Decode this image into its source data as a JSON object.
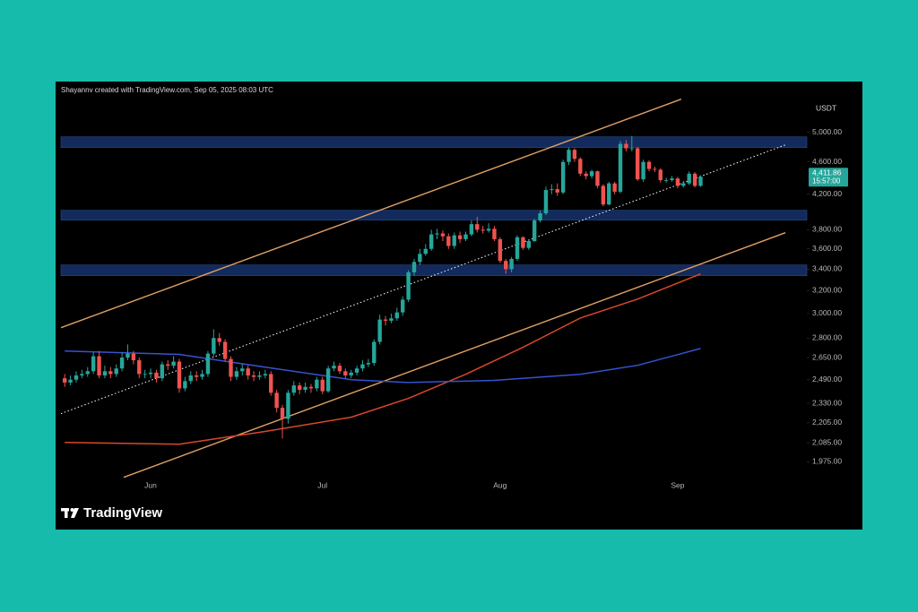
{
  "header": "Shayannv created with TradingView.com, Sep 05, 2025 08:03 UTC",
  "logo": "TradingView",
  "chart_data": {
    "type": "candlestick",
    "y_unit": "USDT",
    "log_scale": true,
    "grid": false,
    "up_color": "#26a69a",
    "down_color": "#ef5350",
    "categories": [
      null,
      null,
      null,
      null,
      null,
      null,
      null,
      null,
      null,
      null,
      null,
      null,
      null,
      null,
      null,
      "Jun",
      null,
      null,
      null,
      null,
      null,
      null,
      null,
      null,
      null,
      null,
      null,
      null,
      null,
      null,
      null,
      null,
      null,
      null,
      null,
      null,
      null,
      null,
      null,
      null,
      null,
      null,
      null,
      null,
      null,
      "Jul",
      null,
      null,
      null,
      null,
      null,
      null,
      null,
      null,
      null,
      null,
      null,
      null,
      null,
      null,
      null,
      null,
      null,
      null,
      null,
      null,
      null,
      null,
      null,
      null,
      null,
      null,
      null,
      null,
      null,
      null,
      "Aug",
      null,
      null,
      null,
      null,
      null,
      null,
      null,
      null,
      null,
      null,
      null,
      null,
      null,
      null,
      null,
      null,
      null,
      null,
      null,
      null,
      null,
      null,
      null,
      null,
      null,
      null,
      null,
      null,
      null,
      null,
      "Sep",
      null,
      null,
      null,
      null
    ],
    "open": [
      2500,
      2470,
      2490,
      2520,
      2530,
      2550,
      2660,
      2520,
      2550,
      2530,
      2570,
      2650,
      2680,
      2630,
      2530,
      2530,
      2540,
      2500,
      2600,
      2590,
      2620,
      2430,
      2480,
      2520,
      2510,
      2530,
      2680,
      2800,
      2770,
      2640,
      2510,
      2550,
      2570,
      2520,
      2510,
      2520,
      2530,
      2400,
      2300,
      2230,
      2400,
      2450,
      2420,
      2440,
      2430,
      2490,
      2410,
      2570,
      2590,
      2550,
      2520,
      2540,
      2570,
      2600,
      2610,
      2770,
      2950,
      2940,
      2960,
      3010,
      3120,
      3370,
      3470,
      3550,
      3600,
      3750,
      3760,
      3730,
      3630,
      3740,
      3700,
      3750,
      3860,
      3800,
      3790,
      3810,
      3700,
      3480,
      3400,
      3500,
      3720,
      3610,
      3680,
      3900,
      3980,
      4250,
      4260,
      4220,
      4600,
      4760,
      4640,
      4450,
      4420,
      4480,
      4300,
      4080,
      4330,
      4230,
      4840,
      4780,
      4780,
      4380,
      4600,
      4510,
      4500,
      4370,
      4370,
      4390,
      4300,
      4330,
      4450,
      4300
    ],
    "high": [
      2530,
      2520,
      2550,
      2560,
      2580,
      2690,
      2700,
      2590,
      2580,
      2600,
      2690,
      2750,
      2700,
      2650,
      2560,
      2570,
      2560,
      2620,
      2630,
      2660,
      2640,
      2510,
      2550,
      2550,
      2560,
      2700,
      2870,
      2840,
      2790,
      2660,
      2580,
      2600,
      2590,
      2550,
      2550,
      2560,
      2550,
      2420,
      2320,
      2420,
      2480,
      2470,
      2470,
      2460,
      2510,
      2510,
      2590,
      2620,
      2610,
      2570,
      2560,
      2590,
      2630,
      2640,
      2790,
      2990,
      2980,
      3000,
      3050,
      3150,
      3390,
      3500,
      3600,
      3650,
      3800,
      3810,
      3790,
      3760,
      3770,
      3780,
      3780,
      3900,
      3940,
      3840,
      3870,
      3840,
      3720,
      3500,
      3520,
      3740,
      3730,
      3700,
      3920,
      4010,
      4290,
      4320,
      4330,
      4630,
      4790,
      4780,
      4660,
      4480,
      4500,
      4490,
      4320,
      4350,
      4350,
      4880,
      4890,
      4950,
      4800,
      4630,
      4620,
      4540,
      4520,
      4400,
      4420,
      4410,
      4360,
      4480,
      4470,
      4430
    ],
    "low": [
      2440,
      2450,
      2470,
      2500,
      2510,
      2530,
      2500,
      2500,
      2500,
      2510,
      2550,
      2630,
      2600,
      2500,
      2500,
      2500,
      2470,
      2480,
      2560,
      2570,
      2400,
      2410,
      2460,
      2480,
      2490,
      2510,
      2660,
      2740,
      2620,
      2480,
      2490,
      2520,
      2490,
      2480,
      2490,
      2500,
      2380,
      2270,
      2110,
      2200,
      2380,
      2390,
      2400,
      2400,
      2410,
      2390,
      2400,
      2550,
      2530,
      2500,
      2500,
      2520,
      2550,
      2580,
      2590,
      2750,
      2900,
      2920,
      2940,
      2980,
      3100,
      3340,
      3440,
      3530,
      3580,
      3700,
      3680,
      3600,
      3600,
      3660,
      3680,
      3730,
      3770,
      3760,
      3770,
      3680,
      3460,
      3355,
      3370,
      3480,
      3590,
      3590,
      3670,
      3880,
      3960,
      4200,
      4180,
      4200,
      4560,
      4600,
      4420,
      4380,
      4390,
      4270,
      4060,
      4070,
      4200,
      4210,
      4740,
      4740,
      4360,
      4350,
      4480,
      4470,
      4340,
      4340,
      4350,
      4270,
      4280,
      4310,
      4280,
      4290
    ],
    "close": [
      2470,
      2490,
      2520,
      2530,
      2550,
      2660,
      2520,
      2550,
      2530,
      2570,
      2650,
      2680,
      2630,
      2530,
      2530,
      2540,
      2500,
      2600,
      2590,
      2620,
      2430,
      2480,
      2520,
      2510,
      2530,
      2680,
      2800,
      2770,
      2640,
      2510,
      2550,
      2570,
      2520,
      2510,
      2520,
      2530,
      2400,
      2300,
      2230,
      2400,
      2450,
      2420,
      2440,
      2430,
      2490,
      2410,
      2570,
      2590,
      2550,
      2520,
      2540,
      2570,
      2600,
      2610,
      2770,
      2950,
      2940,
      2960,
      3010,
      3120,
      3370,
      3470,
      3550,
      3600,
      3750,
      3760,
      3730,
      3630,
      3740,
      3700,
      3750,
      3860,
      3800,
      3790,
      3810,
      3700,
      3480,
      3400,
      3500,
      3720,
      3610,
      3680,
      3900,
      3980,
      4250,
      4260,
      4220,
      4600,
      4760,
      4640,
      4450,
      4420,
      4480,
      4300,
      4080,
      4330,
      4230,
      4840,
      4780,
      4780,
      4380,
      4600,
      4510,
      4500,
      4370,
      4370,
      4390,
      4300,
      4330,
      4450,
      4300,
      4411.86
    ],
    "ylim": [
      1880,
      5640
    ],
    "yticks": [
      {
        "value": 5000,
        "label": "5,000.00"
      },
      {
        "value": 4600,
        "label": "4,600.00"
      },
      {
        "value": 4200,
        "label": "4,200.00"
      },
      {
        "value": 3800,
        "label": "3,800.00"
      },
      {
        "value": 3600,
        "label": "3,600.00"
      },
      {
        "value": 3400,
        "label": "3,400.00"
      },
      {
        "value": 3200,
        "label": "3,200.00"
      },
      {
        "value": 3000,
        "label": "3,000.00"
      },
      {
        "value": 2800,
        "label": "2,800.00"
      },
      {
        "value": 2650,
        "label": "2,650.00"
      },
      {
        "value": 2490,
        "label": "2,490.00"
      },
      {
        "value": 2330,
        "label": "2,330.00"
      },
      {
        "value": 2205,
        "label": "2,205.00"
      },
      {
        "value": 2085,
        "label": "2,085.00"
      },
      {
        "value": 1975,
        "label": "1,975.00"
      }
    ],
    "last_price": {
      "value": 4411.86,
      "label": "4,411.86"
    },
    "countdown": "15:57:00",
    "zone_color": "#132a5c",
    "zones": [
      {
        "from": 4790,
        "to": 4937
      },
      {
        "from": 3904,
        "to": 4014
      },
      {
        "from": 3338,
        "to": 3441
      }
    ],
    "moving_averages": [
      {
        "color": "#d9482b",
        "x": [
          0,
          20,
          35,
          50,
          60,
          70,
          80,
          90,
          100,
          111
        ],
        "values": [
          2086,
          2076,
          2152,
          2240,
          2362,
          2528,
          2728,
          2963,
          3125,
          3355
        ]
      },
      {
        "color": "#3553d1",
        "x": [
          0,
          20,
          35,
          50,
          60,
          75,
          90,
          100,
          111
        ],
        "values": [
          2700,
          2674,
          2579,
          2490,
          2470,
          2485,
          2528,
          2593,
          2719
        ]
      }
    ],
    "trendlines": [
      {
        "color": "#e0a064",
        "style": "solid",
        "x": [
          -0.66,
          107.6
        ],
        "values": [
          2883,
          5490
        ]
      },
      {
        "color": "#e0a064",
        "style": "solid",
        "x": [
          10.3,
          125.8
        ],
        "values": [
          1891,
          3768
        ]
      },
      {
        "color": "#ffffff",
        "style": "dotted",
        "x": [
          -0.66,
          125.8
        ],
        "values": [
          2263,
          4826
        ]
      }
    ]
  }
}
